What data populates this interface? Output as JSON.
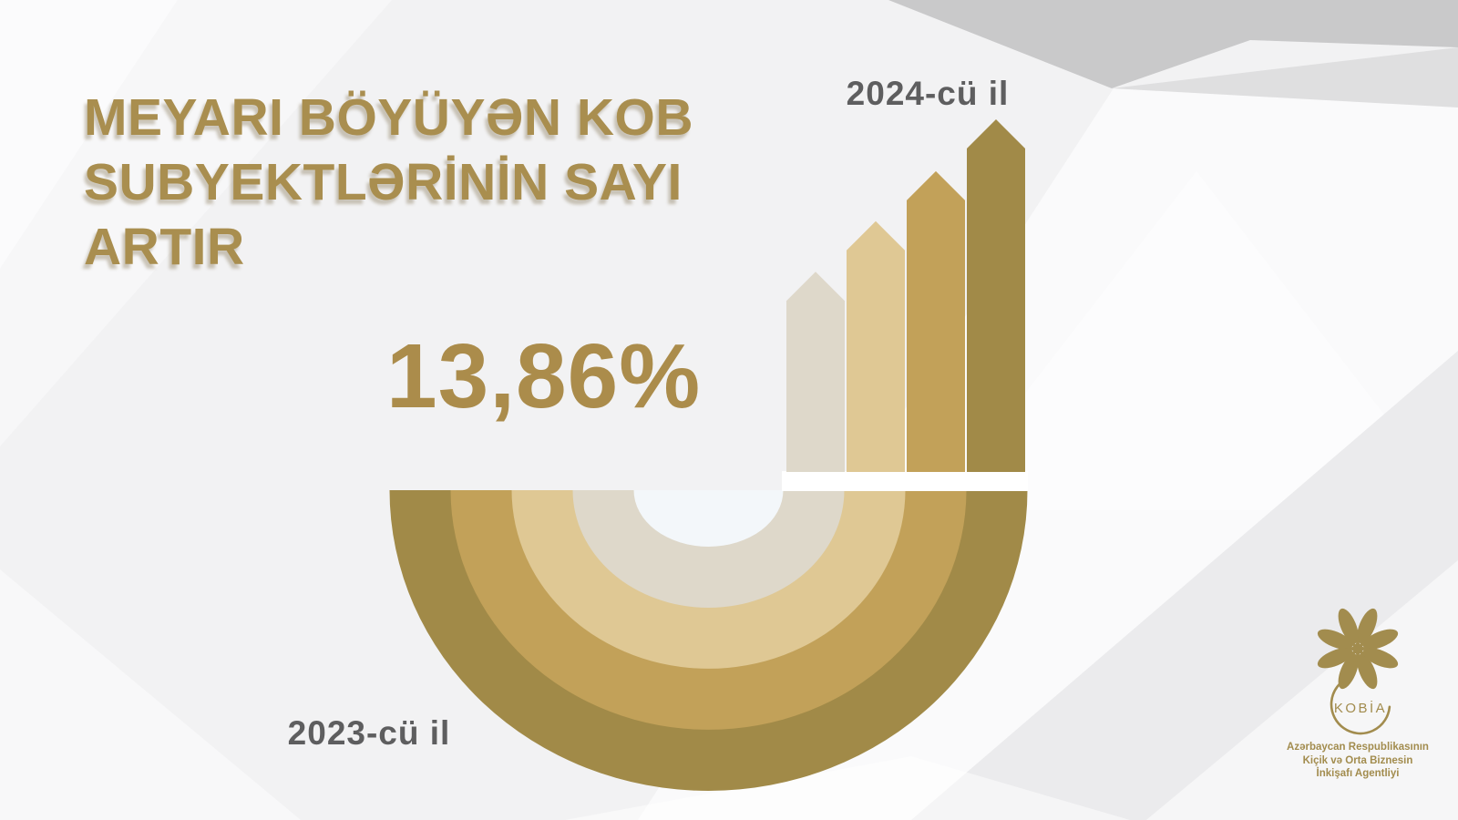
{
  "headline": {
    "lines": [
      "MEYARI BÖYÜYƏN KOB",
      "SUBYEKTLƏRİNİN SAYI",
      "ARTIR"
    ]
  },
  "growth": {
    "value": "13,86%"
  },
  "labels": {
    "year_start": "2023-cü il",
    "year_end": "2024-cü il"
  },
  "logo": {
    "name": "KOBİA",
    "caption_lines": [
      "Azərbaycan Respublikasının",
      "Kiçik və Orta Biznesin",
      "İnkişafı Agentliyi"
    ]
  },
  "palette": {
    "bg": "#f2f2f3",
    "gold_beige": "#ded8ca",
    "gold_tan": "#dfc894",
    "gold_medium": "#c2a159",
    "gold_dark": "#a18a48",
    "title_gold": "#a98e4f",
    "number_gold": "#ab8c4b",
    "label_gray": "#5e5e5f",
    "hole": "#f3f7fa",
    "logo_gold": "#a28c4e",
    "strip": "#ffffff"
  },
  "chart_data": {
    "type": "bar",
    "title": "MEYARI BÖYÜYƏN KOB SUBYEKTLƏRİNİN SAYI ARTIR",
    "categories": [
      "2023-cü il",
      "2024-cü il"
    ],
    "growth_percent_label": "13,86%",
    "growth_percent": 13.86,
    "bars": {
      "count": 4,
      "relative_heights": [
        0.568,
        0.711,
        0.853,
        1.0
      ],
      "colors": [
        "#ded8ca",
        "#dfc894",
        "#c2a159",
        "#a18a48"
      ]
    },
    "rings": {
      "count": 4,
      "colors_outer_to_inner": [
        "#a18a48",
        "#c2a159",
        "#dfc894",
        "#ded8ca"
      ],
      "center_hole_color": "#f3f7fa"
    },
    "axes": "none",
    "legend": "none"
  }
}
